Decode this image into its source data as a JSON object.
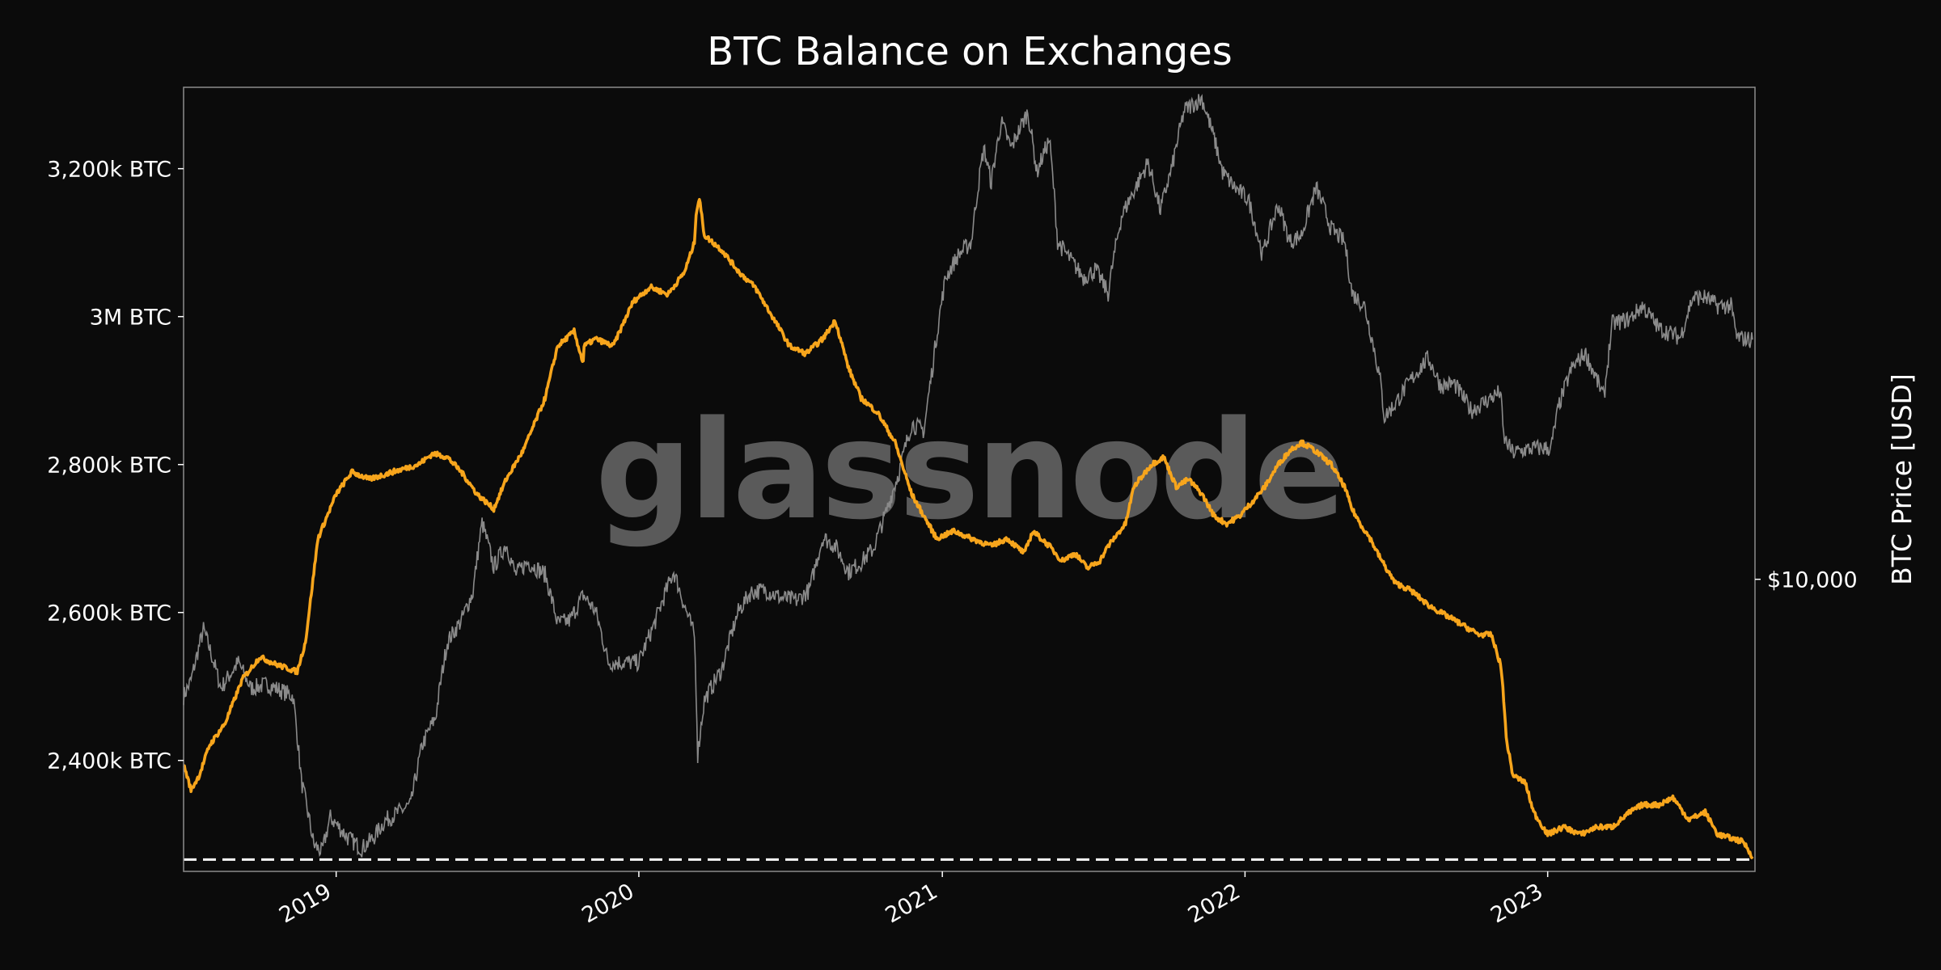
{
  "chart_data": {
    "type": "line",
    "title": "BTC Balance on Exchanges",
    "ylabel_right": "BTC Price [USD]",
    "watermark": "glassnode",
    "x_range": [
      "2018-07-01",
      "2023-09-08"
    ],
    "y_left_range": [
      2250,
      3310
    ],
    "y_right_log_range": [
      3150,
      70000
    ],
    "x_ticks": [
      {
        "label": "2019",
        "date": "2019-01-01"
      },
      {
        "label": "2020",
        "date": "2020-01-01"
      },
      {
        "label": "2021",
        "date": "2021-01-01"
      },
      {
        "label": "2022",
        "date": "2022-01-01"
      },
      {
        "label": "2023",
        "date": "2023-01-01"
      }
    ],
    "y_left_ticks": [
      {
        "label": "3,200k BTC",
        "value": 3200
      },
      {
        "label": "3M BTC",
        "value": 3000
      },
      {
        "label": "2,800k BTC",
        "value": 2800
      },
      {
        "label": "2,600k BTC",
        "value": 2600
      },
      {
        "label": "2,400k BTC",
        "value": 2400
      }
    ],
    "y_right_ticks": [
      {
        "label": "$10,000",
        "value": 10000
      }
    ],
    "reference_line": {
      "value": 2266,
      "style": "dashed",
      "color": "#ffffff"
    },
    "series": [
      {
        "color": "#f7a51c",
        "axis": "left",
        "units": "thousand BTC",
        "x": [
          "2018-07-01",
          "2018-07-10",
          "2018-07-20",
          "2018-08-01",
          "2018-08-20",
          "2018-09-10",
          "2018-10-01",
          "2018-10-20",
          "2018-11-15",
          "2018-11-25",
          "2018-12-10",
          "2019-01-01",
          "2019-01-20",
          "2019-02-10",
          "2019-03-10",
          "2019-04-10",
          "2019-04-28",
          "2019-05-15",
          "2019-06-01",
          "2019-06-20",
          "2019-07-10",
          "2019-07-25",
          "2019-08-15",
          "2019-09-10",
          "2019-09-25",
          "2019-10-15",
          "2019-10-25",
          "2019-10-26",
          "2019-10-27",
          "2019-11-10",
          "2019-12-01",
          "2019-12-25",
          "2020-01-15",
          "2020-02-05",
          "2020-02-25",
          "2020-03-08",
          "2020-03-10",
          "2020-03-14",
          "2020-03-20",
          "2020-04-10",
          "2020-05-01",
          "2020-05-20",
          "2020-06-10",
          "2020-07-01",
          "2020-07-20",
          "2020-08-10",
          "2020-08-25",
          "2020-09-10",
          "2020-09-25",
          "2020-10-15",
          "2020-11-05",
          "2020-11-25",
          "2020-12-10",
          "2020-12-25",
          "2021-01-15",
          "2021-02-05",
          "2021-03-01",
          "2021-03-20",
          "2021-04-10",
          "2021-04-20",
          "2021-05-10",
          "2021-05-25",
          "2021-06-10",
          "2021-06-25",
          "2021-07-10",
          "2021-07-20",
          "2021-08-10",
          "2021-08-20",
          "2021-09-10",
          "2021-09-25",
          "2021-10-10",
          "2021-10-25",
          "2021-11-10",
          "2021-11-25",
          "2021-12-10",
          "2021-12-25",
          "2022-01-10",
          "2022-01-25",
          "2022-02-10",
          "2022-02-25",
          "2022-03-10",
          "2022-03-25",
          "2022-04-15",
          "2022-05-01",
          "2022-05-10",
          "2022-05-20",
          "2022-06-01",
          "2022-06-10",
          "2022-06-20",
          "2022-07-01",
          "2022-07-20",
          "2022-08-10",
          "2022-08-25",
          "2022-09-10",
          "2022-09-25",
          "2022-10-10",
          "2022-10-25",
          "2022-11-05",
          "2022-11-08",
          "2022-11-12",
          "2022-11-20",
          "2022-12-05",
          "2022-12-15",
          "2023-01-01",
          "2023-01-20",
          "2023-02-10",
          "2023-03-01",
          "2023-03-20",
          "2023-04-10",
          "2023-04-25",
          "2023-05-15",
          "2023-06-01",
          "2023-06-20",
          "2023-07-10",
          "2023-07-25",
          "2023-08-10",
          "2023-08-25",
          "2023-09-05"
        ],
        "y": [
          2395,
          2360,
          2380,
          2420,
          2450,
          2510,
          2540,
          2530,
          2520,
          2560,
          2700,
          2760,
          2790,
          2780,
          2790,
          2800,
          2815,
          2810,
          2790,
          2760,
          2740,
          2780,
          2820,
          2890,
          2960,
          2980,
          2940,
          2940,
          2960,
          2970,
          2960,
          3020,
          3040,
          3030,
          3060,
          3100,
          3140,
          3160,
          3110,
          3090,
          3060,
          3040,
          3000,
          2960,
          2950,
          2970,
          2995,
          2930,
          2890,
          2870,
          2830,
          2760,
          2730,
          2700,
          2710,
          2700,
          2690,
          2700,
          2680,
          2710,
          2690,
          2670,
          2680,
          2660,
          2670,
          2690,
          2720,
          2770,
          2800,
          2810,
          2770,
          2780,
          2760,
          2730,
          2720,
          2730,
          2750,
          2770,
          2800,
          2820,
          2830,
          2820,
          2800,
          2770,
          2740,
          2720,
          2700,
          2680,
          2660,
          2640,
          2630,
          2610,
          2600,
          2590,
          2580,
          2570,
          2570,
          2530,
          2500,
          2430,
          2380,
          2370,
          2330,
          2300,
          2310,
          2300,
          2310,
          2310,
          2330,
          2340,
          2340,
          2350,
          2320,
          2330,
          2300,
          2295,
          2290,
          2270
        ]
      },
      {
        "color": "#8a8a8a",
        "axis": "right",
        "units": "USD",
        "x": [
          "2018-07-01",
          "2018-07-10",
          "2018-07-25",
          "2018-08-15",
          "2018-09-05",
          "2018-09-20",
          "2018-10-10",
          "2018-11-10",
          "2018-11-20",
          "2018-12-05",
          "2018-12-15",
          "2018-12-25",
          "2019-01-15",
          "2019-02-01",
          "2019-02-15",
          "2019-03-01",
          "2019-04-01",
          "2019-04-15",
          "2019-05-01",
          "2019-05-15",
          "2019-06-01",
          "2019-06-15",
          "2019-06-26",
          "2019-07-10",
          "2019-07-25",
          "2019-08-05",
          "2019-08-20",
          "2019-09-10",
          "2019-09-25",
          "2019-10-10",
          "2019-10-26",
          "2019-11-10",
          "2019-11-25",
          "2019-12-15",
          "2020-01-01",
          "2020-01-20",
          "2020-02-12",
          "2020-02-25",
          "2020-03-08",
          "2020-03-12",
          "2020-03-20",
          "2020-04-10",
          "2020-04-30",
          "2020-05-15",
          "2020-06-01",
          "2020-06-20",
          "2020-07-10",
          "2020-07-25",
          "2020-08-10",
          "2020-08-25",
          "2020-09-10",
          "2020-09-25",
          "2020-10-10",
          "2020-10-25",
          "2020-11-10",
          "2020-11-25",
          "2020-12-10",
          "2020-12-20",
          "2021-01-05",
          "2021-01-20",
          "2021-02-05",
          "2021-02-20",
          "2021-03-01",
          "2021-03-13",
          "2021-03-25",
          "2021-04-14",
          "2021-04-25",
          "2021-05-10",
          "2021-05-20",
          "2021-06-01",
          "2021-06-20",
          "2021-07-05",
          "2021-07-20",
          "2021-08-05",
          "2021-08-25",
          "2021-09-06",
          "2021-09-21",
          "2021-10-05",
          "2021-10-20",
          "2021-11-10",
          "2021-11-25",
          "2021-12-05",
          "2021-12-20",
          "2022-01-05",
          "2022-01-22",
          "2022-02-10",
          "2022-02-24",
          "2022-03-10",
          "2022-03-28",
          "2022-04-15",
          "2022-05-01",
          "2022-05-10",
          "2022-05-25",
          "2022-06-13",
          "2022-06-18",
          "2022-07-01",
          "2022-07-20",
          "2022-08-10",
          "2022-08-25",
          "2022-09-10",
          "2022-10-01",
          "2022-10-25",
          "2022-11-05",
          "2022-11-09",
          "2022-11-20",
          "2022-12-15",
          "2023-01-05",
          "2023-01-15",
          "2023-01-30",
          "2023-02-15",
          "2023-03-10",
          "2023-03-20",
          "2023-04-10",
          "2023-04-25",
          "2023-05-15",
          "2023-06-10",
          "2023-06-25",
          "2023-07-10",
          "2023-07-25",
          "2023-08-10",
          "2023-08-17",
          "2023-09-05"
        ],
        "y": [
          6300,
          6700,
          8200,
          6500,
          7200,
          6500,
          6600,
          6300,
          4500,
          3500,
          3400,
          3900,
          3600,
          3450,
          3600,
          3850,
          4100,
          5200,
          5800,
          7800,
          8500,
          9500,
          12500,
          10500,
          11500,
          10200,
          10700,
          10200,
          8400,
          8500,
          9400,
          8800,
          7200,
          7200,
          7200,
          8400,
          10300,
          9000,
          8000,
          5000,
          6200,
          7000,
          8800,
          9500,
          9600,
          9300,
          9200,
          9600,
          11800,
          11400,
          10300,
          10700,
          11300,
          13000,
          15300,
          18500,
          18000,
          23000,
          33000,
          36000,
          38000,
          55000,
          48000,
          61000,
          55000,
          63500,
          50000,
          57000,
          38000,
          36000,
          33000,
          34000,
          31000,
          42000,
          48000,
          52000,
          43000,
          51000,
          64000,
          67000,
          57000,
          50000,
          47000,
          45000,
          36000,
          44000,
          38000,
          39000,
          47000,
          40000,
          38000,
          31000,
          29500,
          22000,
          19000,
          20000,
          22000,
          24000,
          21500,
          21700,
          19500,
          20500,
          21000,
          17500,
          16500,
          16800,
          16800,
          20000,
          23000,
          24500,
          20500,
          27500,
          28000,
          29500,
          27000,
          26000,
          30500,
          30500,
          29500,
          29500,
          26000,
          25800
        ]
      }
    ]
  }
}
